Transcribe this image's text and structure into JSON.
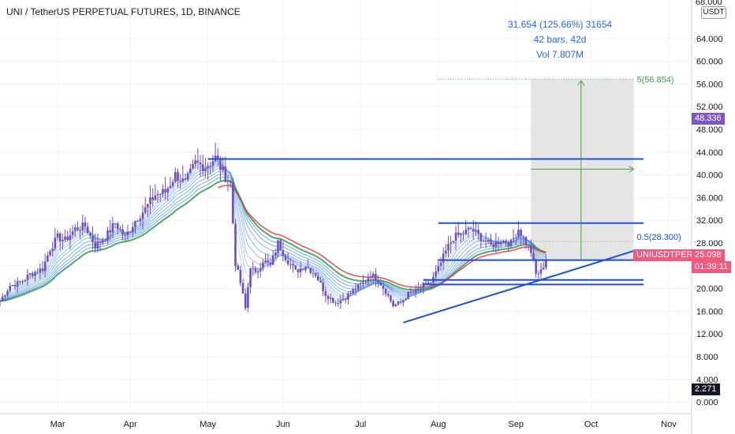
{
  "header": {
    "title": "UNI / TetherUS PERPETUAL FUTURES, 1D, BINANCE",
    "axis_unit": "USDT",
    "top_cut_label": "68.000"
  },
  "measure": {
    "line1": "31.654 (125.66%) 31654",
    "line2": "42 bars, 42d",
    "line3": "Vol 7.807M",
    "target_label": "5(56.854)",
    "fib_label": "0.5(28.300)"
  },
  "price_tags": {
    "marker": {
      "value": "48.336",
      "color": "#7e57c2"
    },
    "symbol": {
      "label": "UNIUSDTPERP",
      "value": "25.098",
      "countdown": "01:39:11",
      "color": "#ef5a7e"
    },
    "bottom": {
      "value": "2.271",
      "color": "#131722"
    }
  },
  "colors": {
    "blue": "#1e4fd8",
    "ribbon_fast": "#4a90e2",
    "ribbon_slow": "#2e9b4a",
    "red_ma": "#e53935",
    "candle": "#6b4fbf",
    "box": "#e5e5e5",
    "target": "#43a047"
  },
  "chart_data": {
    "type": "candlestick",
    "title": "UNI / TetherUS PERPETUAL FUTURES, 1D, BINANCE",
    "ylabel": "USDT",
    "ylim": [
      -2,
      68
    ],
    "y_ticks": [
      0,
      4,
      8,
      12,
      16,
      20,
      24,
      28,
      32,
      36,
      40,
      44,
      48,
      52,
      56,
      60,
      64
    ],
    "y_tick_labels": [
      "0.000",
      "4.000",
      "8.000",
      "12.000",
      "16.000",
      "20.000",
      "24.000",
      "28.000",
      "32.000",
      "36.000",
      "40.000",
      "44.000",
      "48.000",
      "52.000",
      "56.000",
      "60.000",
      "64.000"
    ],
    "x_ticks": [
      "Mar",
      "Apr",
      "May",
      "Jun",
      "Jul",
      "Aug",
      "Sep",
      "Oct",
      "Nov"
    ],
    "x_tick_days": [
      31,
      60,
      91,
      121,
      152,
      183,
      214,
      244,
      275
    ],
    "x_range_days": [
      8,
      281
    ],
    "price_path": [
      [
        8,
        17.8
      ],
      [
        12,
        20.5
      ],
      [
        16,
        21.0
      ],
      [
        20,
        22.5
      ],
      [
        25,
        23.5
      ],
      [
        28,
        27.0
      ],
      [
        31,
        29.0
      ],
      [
        34,
        28.5
      ],
      [
        38,
        30.5
      ],
      [
        42,
        31.0
      ],
      [
        46,
        27.5
      ],
      [
        50,
        29.0
      ],
      [
        54,
        31.5
      ],
      [
        58,
        29.0
      ],
      [
        62,
        32.0
      ],
      [
        66,
        34.0
      ],
      [
        70,
        36.5
      ],
      [
        74,
        37.0
      ],
      [
        78,
        40.0
      ],
      [
        82,
        38.5
      ],
      [
        86,
        42.0
      ],
      [
        90,
        41.5
      ],
      [
        94,
        43.0
      ],
      [
        97,
        40.5
      ],
      [
        100,
        38.5
      ],
      [
        102,
        24.5
      ],
      [
        104,
        21.0
      ],
      [
        106,
        16.5
      ],
      [
        108,
        24.0
      ],
      [
        110,
        22.5
      ],
      [
        113,
        25.0
      ],
      [
        116,
        24.0
      ],
      [
        119,
        28.0
      ],
      [
        122,
        25.5
      ],
      [
        126,
        23.0
      ],
      [
        130,
        24.0
      ],
      [
        134,
        22.5
      ],
      [
        138,
        19.0
      ],
      [
        142,
        17.5
      ],
      [
        146,
        18.5
      ],
      [
        150,
        20.0
      ],
      [
        153,
        21.0
      ],
      [
        156,
        22.5
      ],
      [
        159,
        21.5
      ],
      [
        162,
        19.5
      ],
      [
        165,
        17.0
      ],
      [
        168,
        17.5
      ],
      [
        171,
        19.0
      ],
      [
        174,
        19.5
      ],
      [
        177,
        20.5
      ],
      [
        180,
        21.0
      ],
      [
        183,
        23.5
      ],
      [
        186,
        26.5
      ],
      [
        189,
        29.0
      ],
      [
        192,
        29.5
      ],
      [
        196,
        30.5
      ],
      [
        200,
        29.0
      ],
      [
        204,
        27.5
      ],
      [
        208,
        28.5
      ],
      [
        212,
        28.0
      ],
      [
        215,
        30.5
      ],
      [
        218,
        28.0
      ],
      [
        220,
        26.5
      ],
      [
        222,
        22.5
      ],
      [
        224,
        23.0
      ],
      [
        226,
        25.1
      ]
    ],
    "lines": [
      {
        "kind": "horizontal",
        "y": 42.8,
        "x1": 91,
        "x2": 265
      },
      {
        "kind": "horizontal",
        "y": 31.5,
        "x1": 183,
        "x2": 265
      },
      {
        "kind": "horizontal",
        "y": 25.0,
        "x1": 183,
        "x2": 265
      },
      {
        "kind": "horizontal",
        "y": 21.5,
        "x1": 177,
        "x2": 265
      },
      {
        "kind": "horizontal",
        "y": 20.7,
        "x1": 177,
        "x2": 265
      },
      {
        "kind": "trend",
        "x1": 169,
        "y1": 14.0,
        "x2": 261,
        "y2": 26.6
      }
    ],
    "projection": {
      "box_x": [
        220,
        261
      ],
      "box_y": [
        25.1,
        56.85
      ],
      "arrow_x": 240,
      "dotted_top_y": 56.85,
      "dotted_top_x1": 183,
      "fib_y": 28.3,
      "horizontal_arrow_y": 41.0
    }
  }
}
